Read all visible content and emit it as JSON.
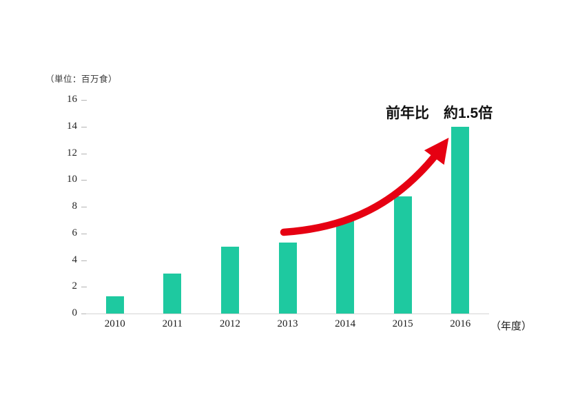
{
  "chart": {
    "unit_label": "（単位：百万食）",
    "annotation": "前年比　約1.5倍",
    "x_suffix": "（年度）",
    "bar_color": "#1ec9a0",
    "arrow_color": "#e60012",
    "tick_color": "#b3b3b3"
  },
  "chart_data": {
    "type": "bar",
    "categories": [
      "2010",
      "2011",
      "2012",
      "2013",
      "2014",
      "2015",
      "2016"
    ],
    "values": [
      1.3,
      3,
      5,
      5.3,
      7,
      8.8,
      14
    ],
    "title": "",
    "xlabel": "（年度）",
    "ylabel": "（単位：百万食）",
    "ylim": [
      0,
      16
    ],
    "ytick_step": 2,
    "yticks": [
      0,
      2,
      4,
      6,
      8,
      10,
      12,
      14,
      16
    ],
    "grid": false,
    "legend": false,
    "annotations": [
      "前年比　約1.5倍"
    ]
  }
}
